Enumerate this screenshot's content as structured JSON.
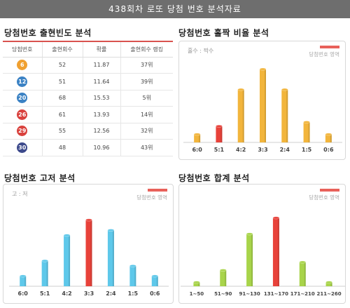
{
  "page_title": "438회차 로또 당첨 번호 분석자료",
  "frequency": {
    "title": "당첨번호 출현빈도 분석",
    "headers": [
      "당첨번호",
      "출현회수",
      "확률",
      "출현회수 랭킹"
    ],
    "rows": [
      {
        "number": "6",
        "count": "52",
        "prob": "11.87",
        "rank": "37위",
        "color": "#f0a030"
      },
      {
        "number": "12",
        "count": "51",
        "prob": "11.64",
        "rank": "39위",
        "color": "#3b82c4"
      },
      {
        "number": "20",
        "count": "68",
        "prob": "15.53",
        "rank": "5위",
        "color": "#3b82c4"
      },
      {
        "number": "26",
        "count": "61",
        "prob": "13.93",
        "rank": "14위",
        "color": "#d9413d"
      },
      {
        "number": "29",
        "count": "55",
        "prob": "12.56",
        "rank": "32위",
        "color": "#d9413d"
      },
      {
        "number": "30",
        "count": "48",
        "prob": "10.96",
        "rank": "43위",
        "color": "#3d4a8c"
      }
    ]
  },
  "oddeven": {
    "title": "당첨번호 홀짝 비율 분석",
    "panel_label": "홀수 : 짝수",
    "legend": "당첨번호 영역"
  },
  "highlow": {
    "title": "당첨번호 고저 분석",
    "panel_label": "고 : 저",
    "legend": "당첨번호 영역"
  },
  "sum": {
    "title": "당첨번호 합계 분석",
    "legend": "당첨번호 영역"
  },
  "colors": {
    "highlight": "#e8423a",
    "oddeven_bar": "#f2b53c",
    "highlow_bar": "#5ec8ea",
    "sum_bar": "#a8d44a"
  },
  "chart_data": [
    {
      "type": "bar",
      "categories": [
        "6:0",
        "5:1",
        "4:2",
        "3:3",
        "2:4",
        "1:5",
        "0:6"
      ],
      "values": [
        2,
        4,
        13,
        18,
        13,
        5,
        2
      ],
      "highlight_index": 1,
      "ylim": [
        0,
        20
      ]
    },
    {
      "type": "bar",
      "categories": [
        "6:0",
        "5:1",
        "4:2",
        "3:3",
        "2:4",
        "1:5",
        "0:6"
      ],
      "values": [
        2,
        5,
        10,
        13,
        11,
        4,
        2
      ],
      "highlight_index": 3,
      "ylim": [
        0,
        15
      ]
    },
    {
      "type": "bar",
      "categories": [
        "1~50",
        "51~90",
        "91~130",
        "131~170",
        "171~210",
        "211~260"
      ],
      "values": [
        1,
        4,
        13,
        17,
        6,
        1
      ],
      "highlight_index": 3,
      "ylim": [
        0,
        19
      ]
    }
  ]
}
